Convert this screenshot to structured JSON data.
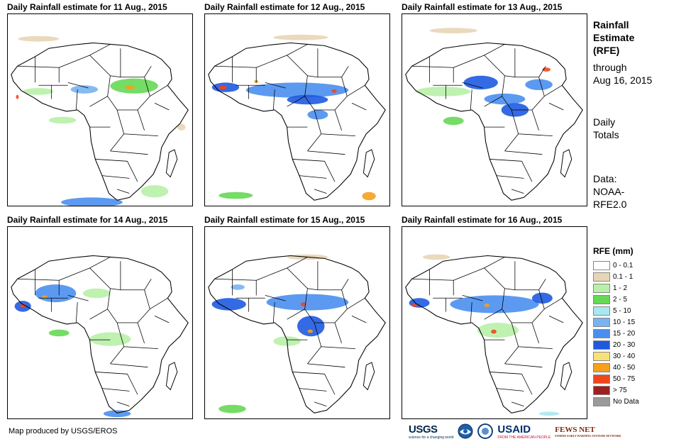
{
  "panels": [
    {
      "title": "Daily Rainfall estimate for 11 Aug., 2015"
    },
    {
      "title": "Daily Rainfall estimate for 12 Aug., 2015"
    },
    {
      "title": "Daily Rainfall estimate for 13 Aug., 2015"
    },
    {
      "title": "Daily Rainfall estimate for 14 Aug., 2015"
    },
    {
      "title": "Daily Rainfall estimate for 15 Aug., 2015"
    },
    {
      "title": "Daily Rainfall estimate for 16 Aug., 2015"
    }
  ],
  "sidebar": {
    "title_lines": [
      "Rainfall",
      "Estimate",
      "(RFE)"
    ],
    "through_lines": [
      "through",
      "Aug 16, 2015"
    ],
    "daily_lines": [
      "Daily",
      "Totals"
    ],
    "data_lines": [
      "Data:",
      "NOAA-",
      "RFE2.0"
    ]
  },
  "legend": {
    "title": "RFE (mm)",
    "items": [
      {
        "label": "0 - 0.1",
        "color": "#ffffff"
      },
      {
        "label": "0.1 - 1",
        "color": "#e8d5b5"
      },
      {
        "label": "1 - 2",
        "color": "#b8f0a8"
      },
      {
        "label": "2 - 5",
        "color": "#66d855"
      },
      {
        "label": "5 - 10",
        "color": "#a8e8f0"
      },
      {
        "label": "10 - 15",
        "color": "#78b4f0"
      },
      {
        "label": "15 - 20",
        "color": "#4a8ff0"
      },
      {
        "label": "20 - 30",
        "color": "#1e5ae0"
      },
      {
        "label": "30 - 40",
        "color": "#f8e07a"
      },
      {
        "label": "40 - 50",
        "color": "#f5a01e"
      },
      {
        "label": "50 - 75",
        "color": "#f0461e"
      },
      {
        "label": "> 75",
        "color": "#a01e1e"
      },
      {
        "label": "No Data",
        "color": "#9a9a9a"
      }
    ]
  },
  "credit": "Map produced by USGS/EROS",
  "logos": {
    "usgs": "USGS",
    "usgs_tagline": "science for a changing world",
    "usaid": "USAID",
    "usaid_tagline": "FROM THE AMERICAN PEOPLE",
    "fews": "FEWS NET",
    "fews_tagline": "FAMINE EARLY WARNING SYSTEMS NETWORK"
  }
}
